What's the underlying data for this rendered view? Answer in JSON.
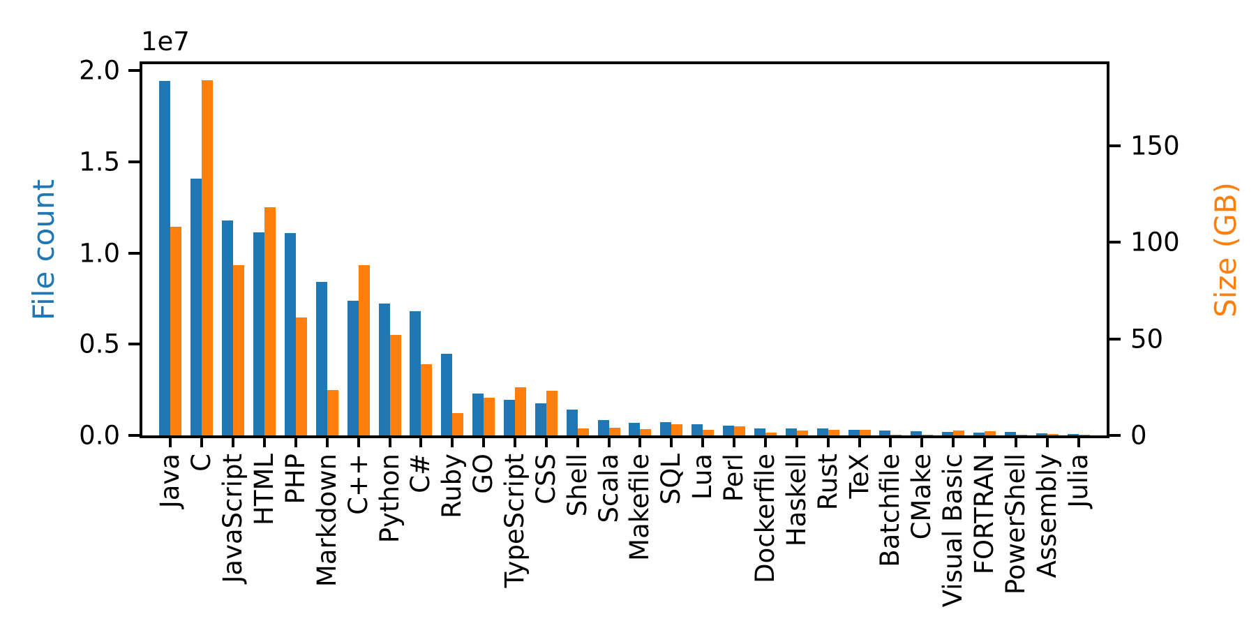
{
  "figure": {
    "background": "#ffffff"
  },
  "chart_data": {
    "type": "bar",
    "title": "",
    "grid": false,
    "legend": "none",
    "x_tick_rotation": 90,
    "categories": [
      "Java",
      "C",
      "JavaScript",
      "HTML",
      "PHP",
      "Markdown",
      "C++",
      "Python",
      "C#",
      "Ruby",
      "GO",
      "TypeScript",
      "CSS",
      "Shell",
      "Scala",
      "Makefile",
      "SQL",
      "Lua",
      "Perl",
      "Dockerfile",
      "Haskell",
      "Rust",
      "TeX",
      "Batchfile",
      "CMake",
      "Visual Basic",
      "FORTRAN",
      "PowerShell",
      "Assembly",
      "Julia"
    ],
    "series": [
      {
        "name": "File count",
        "axis": "left",
        "color": "#1f77b4",
        "values": [
          19450000,
          14100000,
          11770000,
          11150000,
          11100000,
          8430000,
          7370000,
          7230000,
          6820000,
          4480000,
          2290000,
          1950000,
          1760000,
          1410000,
          850000,
          700000,
          710000,
          620000,
          530000,
          390000,
          370000,
          390000,
          290000,
          280000,
          230000,
          200000,
          150000,
          180000,
          100000,
          70000
        ]
      },
      {
        "name": "Size (GB)",
        "axis": "right",
        "color": "#ff7f0e",
        "values": [
          108,
          184,
          88,
          118,
          61,
          23.5,
          88,
          52,
          37,
          11.5,
          19.5,
          25,
          23,
          3.5,
          4,
          3.2,
          5.6,
          2.9,
          4.7,
          1.3,
          2.5,
          2.9,
          2.8,
          0.3,
          0.3,
          2.6,
          2.3,
          0.4,
          0.7,
          0.2
        ]
      }
    ],
    "left_axis": {
      "label": "File count",
      "color": "#1f77b4",
      "offset_text": "1e7",
      "tick_values": [
        0,
        5000000,
        10000000,
        15000000,
        20000000
      ],
      "tick_labels": [
        "0.0",
        "0.5",
        "1.0",
        "1.5",
        "2.0"
      ],
      "range": [
        0,
        20360000
      ]
    },
    "right_axis": {
      "label": "Size (GB)",
      "color": "#ff7f0e",
      "tick_values": [
        0,
        50,
        100,
        150
      ],
      "tick_labels": [
        "0",
        "50",
        "100",
        "150"
      ],
      "range": [
        0,
        192.2
      ]
    }
  }
}
